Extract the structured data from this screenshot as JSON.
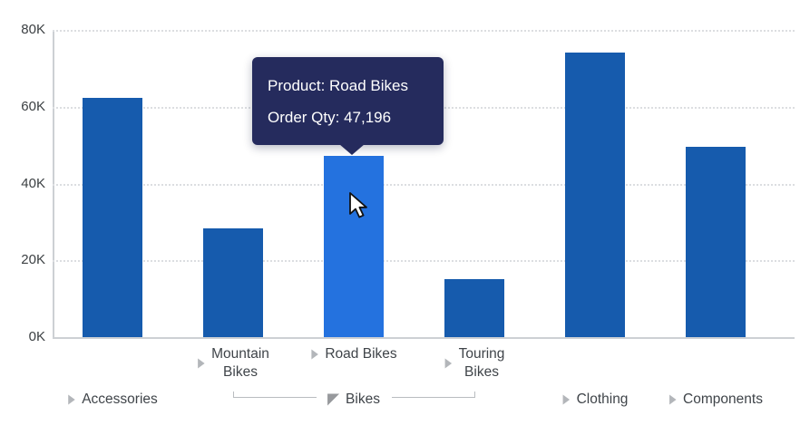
{
  "chart_data": {
    "type": "bar",
    "title": "",
    "xlabel": "",
    "ylabel": "",
    "ylim": [
      0,
      80000
    ],
    "y_tick_labels": [
      "0K",
      "20K",
      "40K",
      "60K",
      "80K"
    ],
    "grid": "horizontal-dotted",
    "legend": false,
    "categories": [
      "Accessories",
      "Mountain Bikes",
      "Road Bikes",
      "Touring Bikes",
      "Clothing",
      "Components"
    ],
    "values": [
      62300,
      28300,
      47196,
      15100,
      74000,
      49500
    ],
    "highlighted_category": "Road Bikes",
    "hierarchy": {
      "expanded_group_label": "Bikes",
      "expanded_group_children": [
        "Mountain Bikes",
        "Road Bikes",
        "Touring Bikes"
      ],
      "collapsed_items": [
        "Accessories",
        "Clothing",
        "Components"
      ]
    }
  },
  "x_axis_labels": {
    "subcategory_row": [
      {
        "category": "Mountain Bikes",
        "lines": [
          "Mountain",
          "Bikes"
        ]
      },
      {
        "category": "Road Bikes",
        "lines": [
          "Road Bikes"
        ]
      },
      {
        "category": "Touring Bikes",
        "lines": [
          "Touring",
          "Bikes"
        ]
      }
    ],
    "category_row": [
      {
        "label": "Accessories",
        "state": "collapsed",
        "align_category": "Accessories"
      },
      {
        "label": "Bikes",
        "state": "expanded",
        "align_category": null
      },
      {
        "label": "Clothing",
        "state": "collapsed",
        "align_category": "Clothing"
      },
      {
        "label": "Components",
        "state": "collapsed",
        "align_category": "Components"
      }
    ]
  },
  "tooltip": {
    "line1": "Product: Road Bikes",
    "line2": "Order Qty: 47,196"
  },
  "colors": {
    "bar": "#165bad",
    "bar_highlight": "#2472df",
    "tooltip_bg": "#252b5d",
    "tooltip_text": "#ffffff",
    "axis_text": "#3c4043",
    "axis_line": "#cdd0d4",
    "gridline": "#dcdee1",
    "collapsed_arrow": "#b3b6ba",
    "expanded_arrow": "#97999d",
    "bracket": "#b9bcc0"
  }
}
